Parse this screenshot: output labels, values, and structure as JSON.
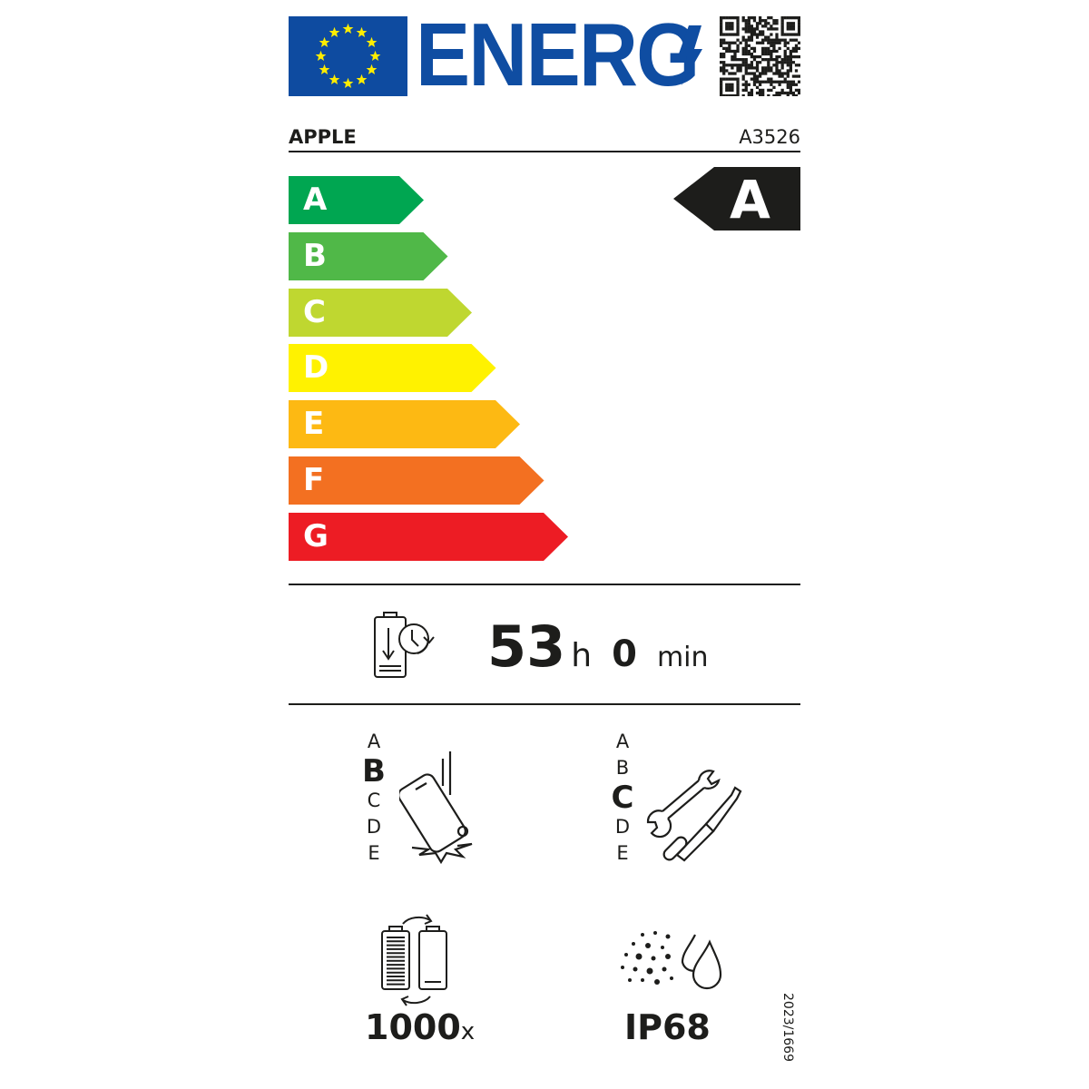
{
  "header": {
    "logo_text": "ENERG",
    "flag_color": "#0e4ba0",
    "star_color": "#ffed00",
    "logo_color": "#0f4da2"
  },
  "supplier": "APPLE",
  "model": "A3526",
  "energy_scale": {
    "classes": [
      {
        "label": "A",
        "color": "#00a651"
      },
      {
        "label": "B",
        "color": "#50b848"
      },
      {
        "label": "C",
        "color": "#bfd730"
      },
      {
        "label": "D",
        "color": "#fff200"
      },
      {
        "label": "E",
        "color": "#fdb913"
      },
      {
        "label": "F",
        "color": "#f37021"
      },
      {
        "label": "G",
        "color": "#ed1c24"
      }
    ],
    "rating": "A"
  },
  "battery_endurance": {
    "icon": "battery-clock-icon",
    "hours": "53",
    "hours_unit": "h",
    "minutes": "0",
    "minutes_unit": "min"
  },
  "drop_resistance": {
    "icon": "phone-drop-icon",
    "scale": [
      "A",
      "B",
      "C",
      "D",
      "E"
    ],
    "selected": "B"
  },
  "repairability": {
    "icon": "wrench-screwdriver-icon",
    "scale": [
      "A",
      "B",
      "C",
      "D",
      "E"
    ],
    "selected": "C"
  },
  "battery_cycles": {
    "icon": "battery-cycle-icon",
    "value": "1000",
    "unit": "x"
  },
  "ingress_protection": {
    "icon": "dust-water-icon",
    "value": "IP68"
  },
  "regulation": "2023/1669"
}
